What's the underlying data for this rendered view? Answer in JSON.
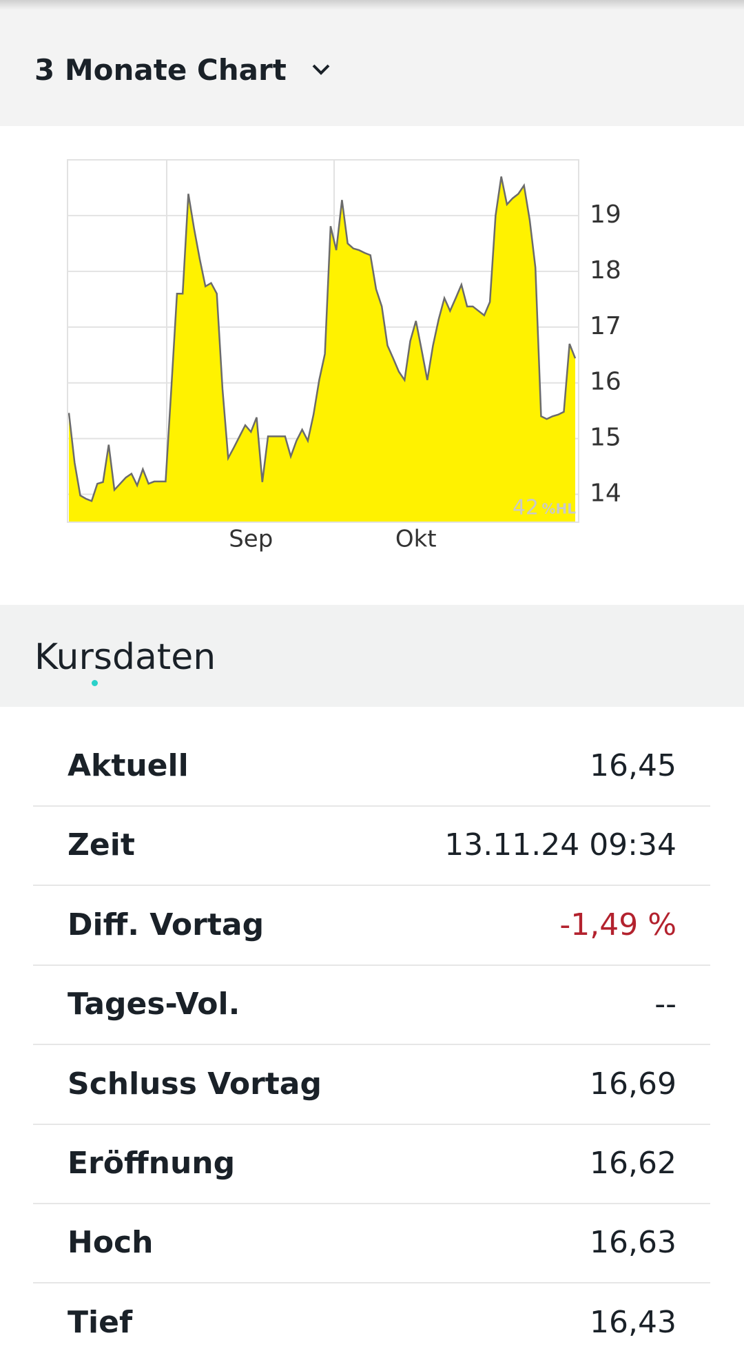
{
  "header": {
    "title": "3 Monate Chart"
  },
  "chart_data": {
    "type": "area",
    "categories": [
      null,
      null,
      null,
      null,
      null,
      null,
      null,
      null,
      null,
      null,
      null,
      null,
      null,
      null,
      null,
      null,
      null,
      null,
      null,
      null,
      null,
      null,
      null,
      null,
      null,
      null,
      null,
      null,
      null,
      null,
      null,
      null,
      "Sep",
      null,
      null,
      null,
      null,
      null,
      null,
      null,
      null,
      null,
      null,
      null,
      null,
      null,
      null,
      null,
      null,
      null,
      null,
      null,
      null,
      null,
      null,
      null,
      null,
      null,
      null,
      null,
      null,
      "Okt",
      null,
      null,
      null,
      null,
      null,
      null,
      null,
      null,
      null,
      null,
      null,
      null,
      null,
      null,
      null,
      null,
      null,
      null,
      null,
      null,
      null,
      null,
      null,
      null,
      null,
      null,
      null,
      null
    ],
    "values": [
      15.46,
      14.57,
      13.98,
      13.92,
      13.88,
      14.19,
      14.22,
      14.89,
      14.08,
      14.19,
      14.3,
      14.37,
      14.16,
      14.45,
      14.19,
      14.23,
      14.23,
      14.23,
      15.89,
      17.6,
      17.6,
      19.39,
      18.77,
      18.22,
      17.73,
      17.79,
      17.6,
      15.89,
      14.65,
      14.84,
      15.04,
      15.24,
      15.12,
      15.38,
      14.22,
      15.04,
      15.04,
      15.04,
      15.04,
      14.68,
      14.96,
      15.16,
      14.96,
      15.43,
      16.05,
      16.52,
      18.81,
      18.38,
      19.28,
      18.5,
      18.41,
      18.38,
      18.33,
      18.29,
      17.68,
      17.37,
      16.67,
      16.44,
      16.2,
      16.05,
      16.75,
      17.11,
      16.59,
      16.05,
      16.67,
      17.14,
      17.52,
      17.29,
      17.52,
      17.76,
      17.37,
      17.37,
      17.29,
      17.21,
      17.45,
      19.0,
      19.7,
      19.2,
      19.31,
      19.39,
      19.54,
      18.92,
      18.07,
      15.4,
      15.35,
      15.4,
      15.43,
      15.48,
      16.7,
      16.44
    ],
    "color": "#fff200",
    "line_color": "#6b6b6b",
    "ylim": [
      13.5,
      20
    ],
    "yticks": [
      14,
      15,
      16,
      17,
      18,
      19
    ],
    "grid": true,
    "annotations": [
      "42",
      "%HL"
    ]
  },
  "kursdaten": {
    "title": "Kursdaten",
    "rows": [
      [
        "Aktuell",
        "16,45"
      ],
      [
        "Zeit",
        "13.11.24 09:34"
      ],
      [
        "Diff. Vortag",
        "-1,49 %"
      ],
      [
        "Tages-Vol.",
        "--"
      ],
      [
        "Schluss Vortag",
        "16,69"
      ],
      [
        "Eröffnung",
        "16,62"
      ],
      [
        "Hoch",
        "16,63"
      ],
      [
        "Tief",
        "16,43"
      ]
    ]
  }
}
